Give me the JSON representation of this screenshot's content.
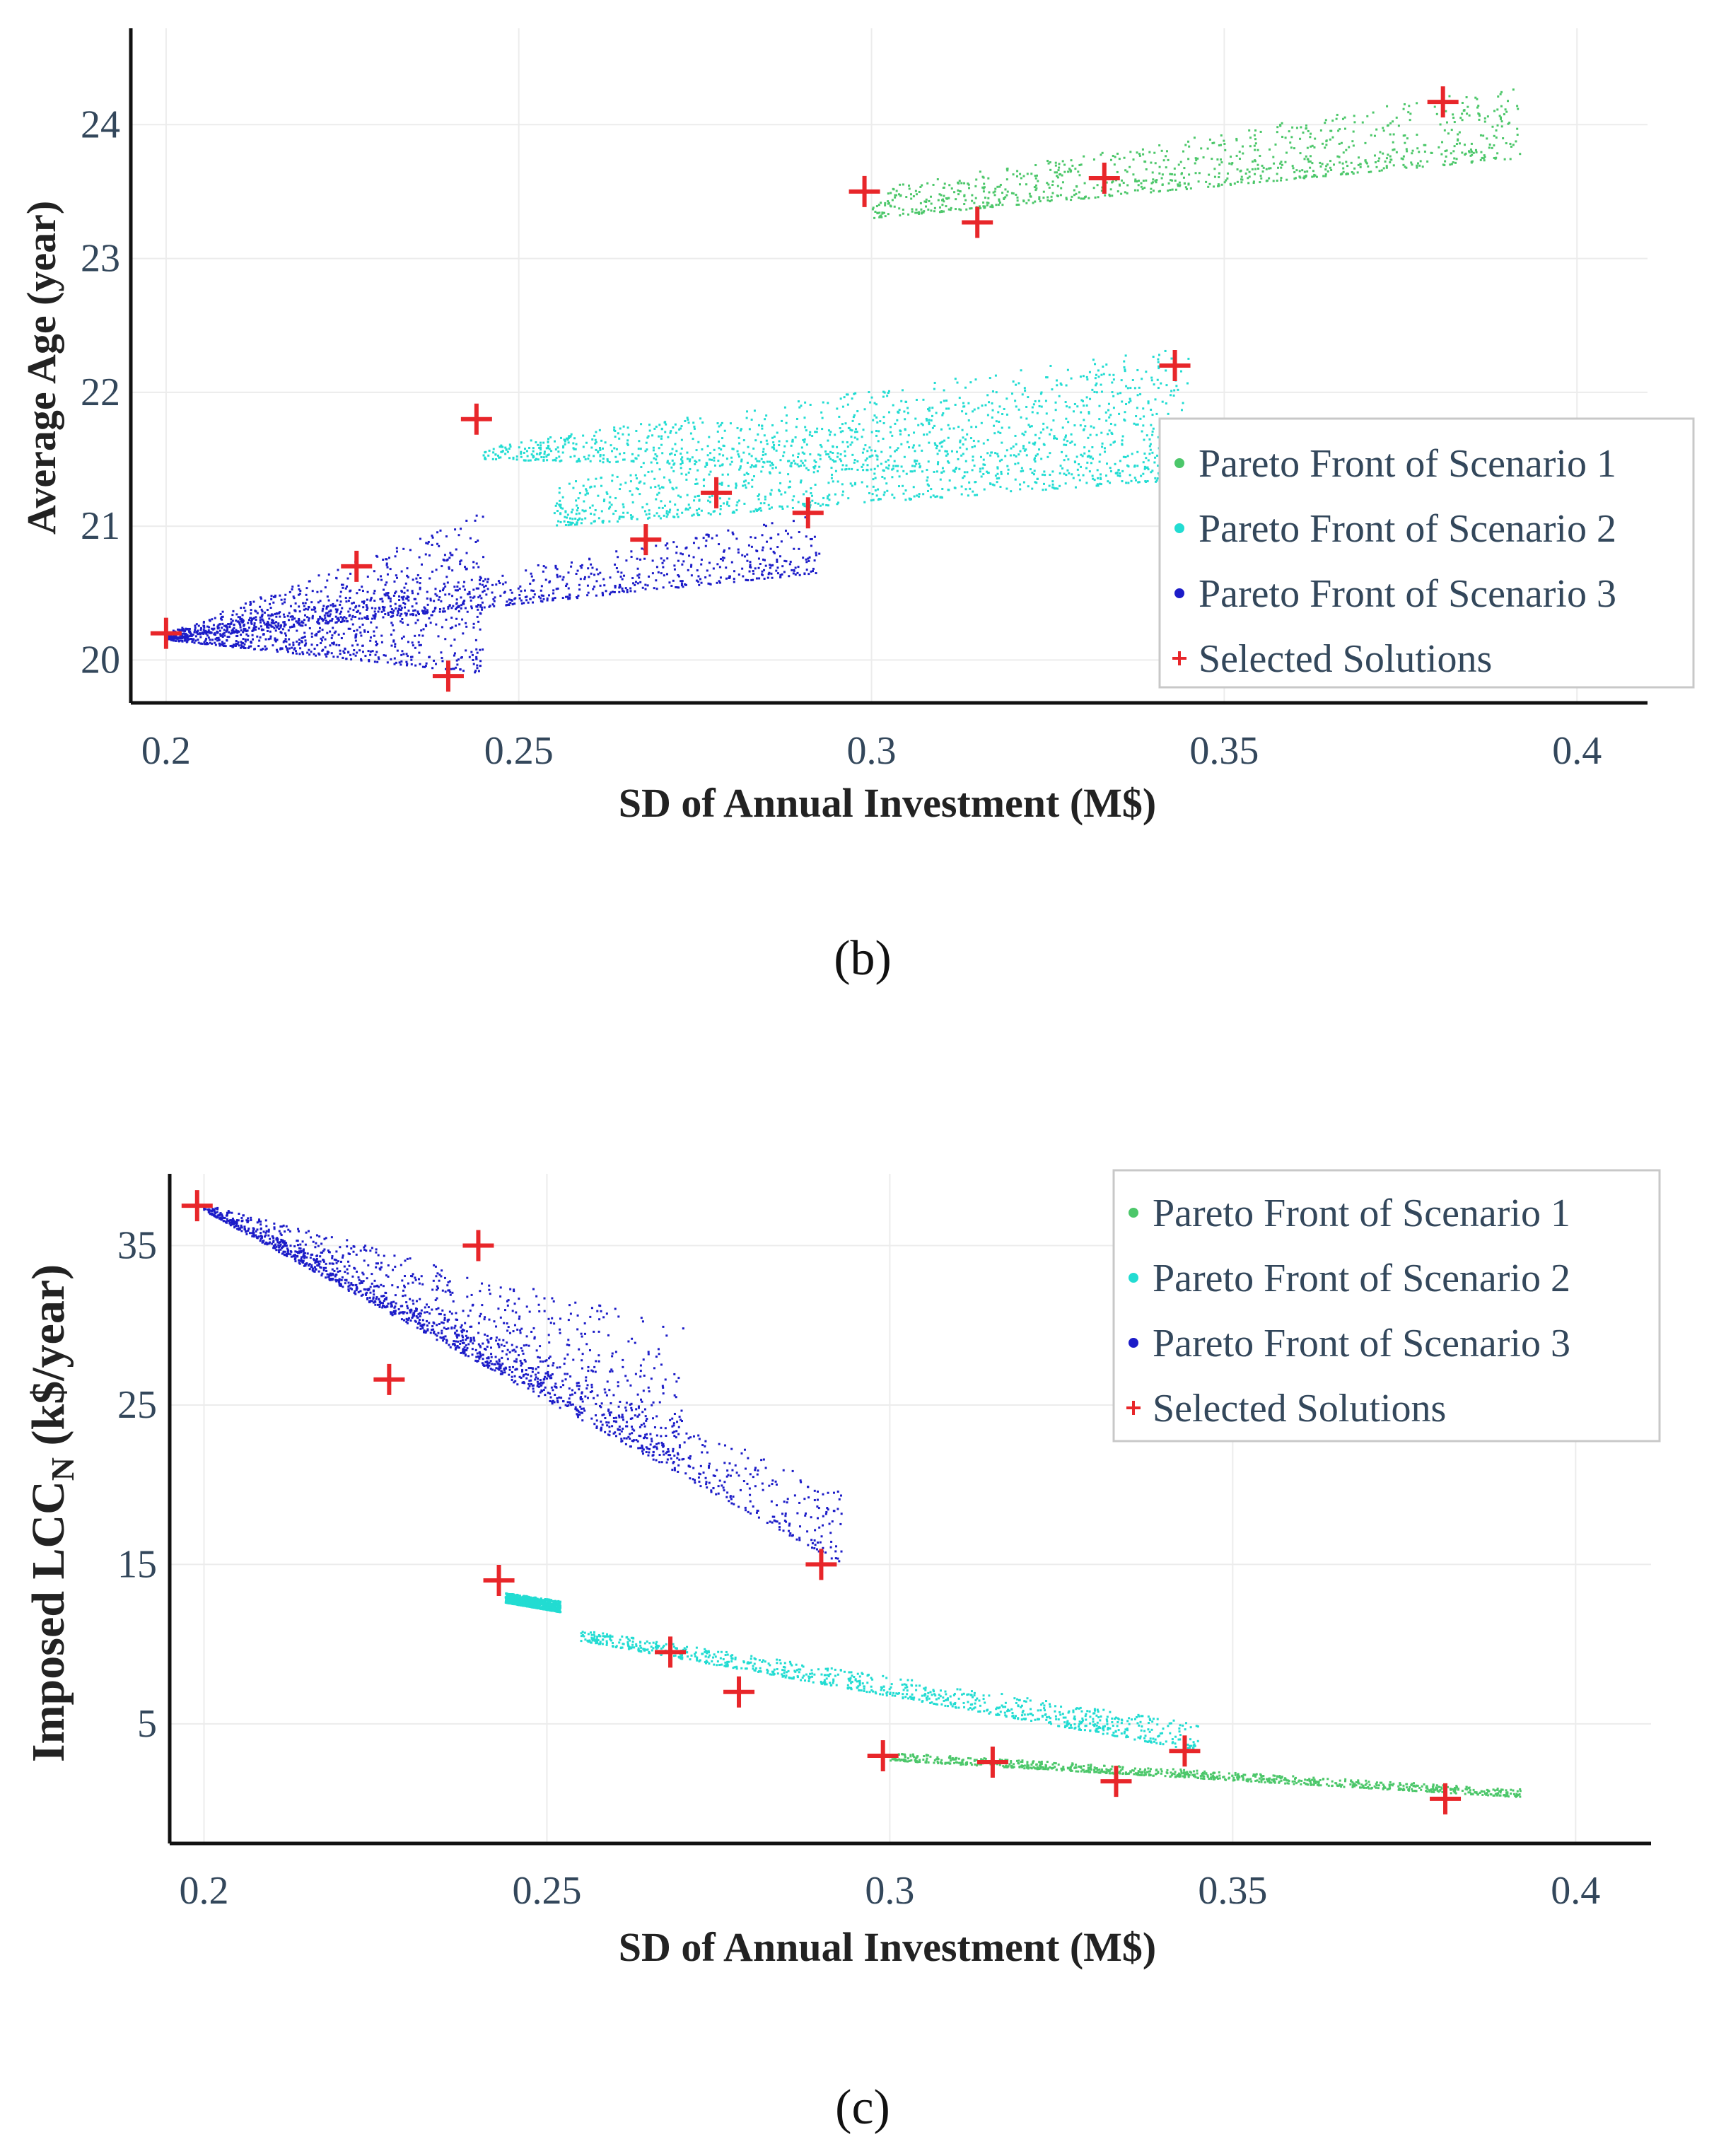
{
  "chart_data": [
    {
      "panel": "(b)",
      "type": "scatter",
      "xlabel": "SD of Annual Investment (M$)",
      "ylabel": "Average Age (year)",
      "xlim": [
        0.195,
        0.41
      ],
      "ylim": [
        19.68,
        24.72
      ],
      "xticks": [
        0.2,
        0.25,
        0.3,
        0.35,
        0.4
      ],
      "xtick_labels": [
        "0.2",
        "0.25",
        "0.3",
        "0.35",
        "0.4"
      ],
      "yticks": [
        20,
        21,
        22,
        23,
        24
      ],
      "ytick_labels": [
        "20",
        "21",
        "22",
        "23",
        "24"
      ],
      "legend_position": "right",
      "series": [
        {
          "name": "Pareto Front of Scenario 1",
          "color": "#4cc76a",
          "marker": "dot",
          "regions": [
            {
              "x": [
                0.3,
                0.392
              ],
              "y_low": [
                23.3,
                23.75
              ],
              "y_high": [
                23.52,
                24.3
              ]
            }
          ]
        },
        {
          "name": "Pareto Front of Scenario 2",
          "color": "#22dcd2",
          "marker": "dot",
          "regions": [
            {
              "x": [
                0.245,
                0.345
              ],
              "y_low": [
                21.5,
                21.35
              ],
              "y_high": [
                21.6,
                22.35
              ]
            },
            {
              "x": [
                0.255,
                0.345
              ],
              "y_low": [
                21.0,
                21.35
              ],
              "y_high": [
                21.3,
                22.35
              ]
            }
          ]
        },
        {
          "name": "Pareto Front of Scenario 3",
          "color": "#1c1cc8",
          "marker": "dot",
          "regions": [
            {
              "x": [
                0.2,
                0.293
              ],
              "y_low": [
                20.15,
                20.65
              ],
              "y_high": [
                20.2,
                21.1
              ]
            },
            {
              "x": [
                0.2,
                0.245
              ],
              "y_low": [
                20.15,
                19.9
              ],
              "y_high": [
                20.2,
                21.1
              ]
            }
          ]
        },
        {
          "name": "Selected Solutions",
          "color": "#e8262a",
          "marker": "plus",
          "x": [
            0.2,
            0.227,
            0.24,
            0.244,
            0.268,
            0.278,
            0.291,
            0.299,
            0.315,
            0.333,
            0.343,
            0.381
          ],
          "y": [
            20.2,
            20.7,
            19.88,
            21.8,
            20.9,
            21.25,
            21.1,
            23.5,
            23.27,
            23.6,
            22.2,
            24.17
          ]
        }
      ]
    },
    {
      "panel": "(c)",
      "type": "scatter",
      "xlabel": "SD of Annual Investment (M$)",
      "ylabel_main": "Imposed LCC",
      "ylabel_sub": "N",
      "ylabel_unit": " (k$/year)",
      "xlim": [
        0.195,
        0.411
      ],
      "ylim": [
        -2.5,
        39.5
      ],
      "xticks": [
        0.2,
        0.25,
        0.3,
        0.35,
        0.4
      ],
      "xtick_labels": [
        "0.2",
        "0.25",
        "0.3",
        "0.35",
        "0.4"
      ],
      "yticks": [
        5,
        15,
        25,
        35
      ],
      "ytick_labels": [
        "5",
        "15",
        "25",
        "35"
      ],
      "legend_position": "top-right",
      "series": [
        {
          "name": "Pareto Front of Scenario 1",
          "color": "#4cc76a",
          "marker": "dot",
          "regions": [
            {
              "x": [
                0.3,
                0.392
              ],
              "y_low": [
                2.7,
                0.4
              ],
              "y_high": [
                3.2,
                0.9
              ]
            }
          ]
        },
        {
          "name": "Pareto Front of Scenario 2",
          "color": "#22dcd2",
          "marker": "dot",
          "regions": [
            {
              "x": [
                0.244,
                0.252
              ],
              "y_low": [
                12.6,
                12.0
              ],
              "y_high": [
                13.2,
                12.7
              ]
            },
            {
              "x": [
                0.255,
                0.345
              ],
              "y_low": [
                10.2,
                3.3
              ],
              "y_high": [
                10.9,
                5.0
              ]
            }
          ]
        },
        {
          "name": "Pareto Front of Scenario 3",
          "color": "#1c1cc8",
          "marker": "dot",
          "regions": [
            {
              "x": [
                0.2,
                0.293
              ],
              "y_low": [
                37.2,
                15.0
              ],
              "y_high": [
                37.6,
                19.5
              ]
            },
            {
              "x": [
                0.2,
                0.27
              ],
              "y_low": [
                37.2,
                21.0
              ],
              "y_high": [
                37.6,
                30.0
              ]
            }
          ]
        },
        {
          "name": "Selected Solutions",
          "color": "#e8262a",
          "marker": "plus",
          "x": [
            0.199,
            0.227,
            0.24,
            0.243,
            0.268,
            0.278,
            0.29,
            0.299,
            0.315,
            0.333,
            0.343,
            0.381
          ],
          "y": [
            37.5,
            26.6,
            35.0,
            14.0,
            9.5,
            7.0,
            15.0,
            3.0,
            2.6,
            1.4,
            3.3,
            0.3
          ]
        }
      ]
    }
  ]
}
